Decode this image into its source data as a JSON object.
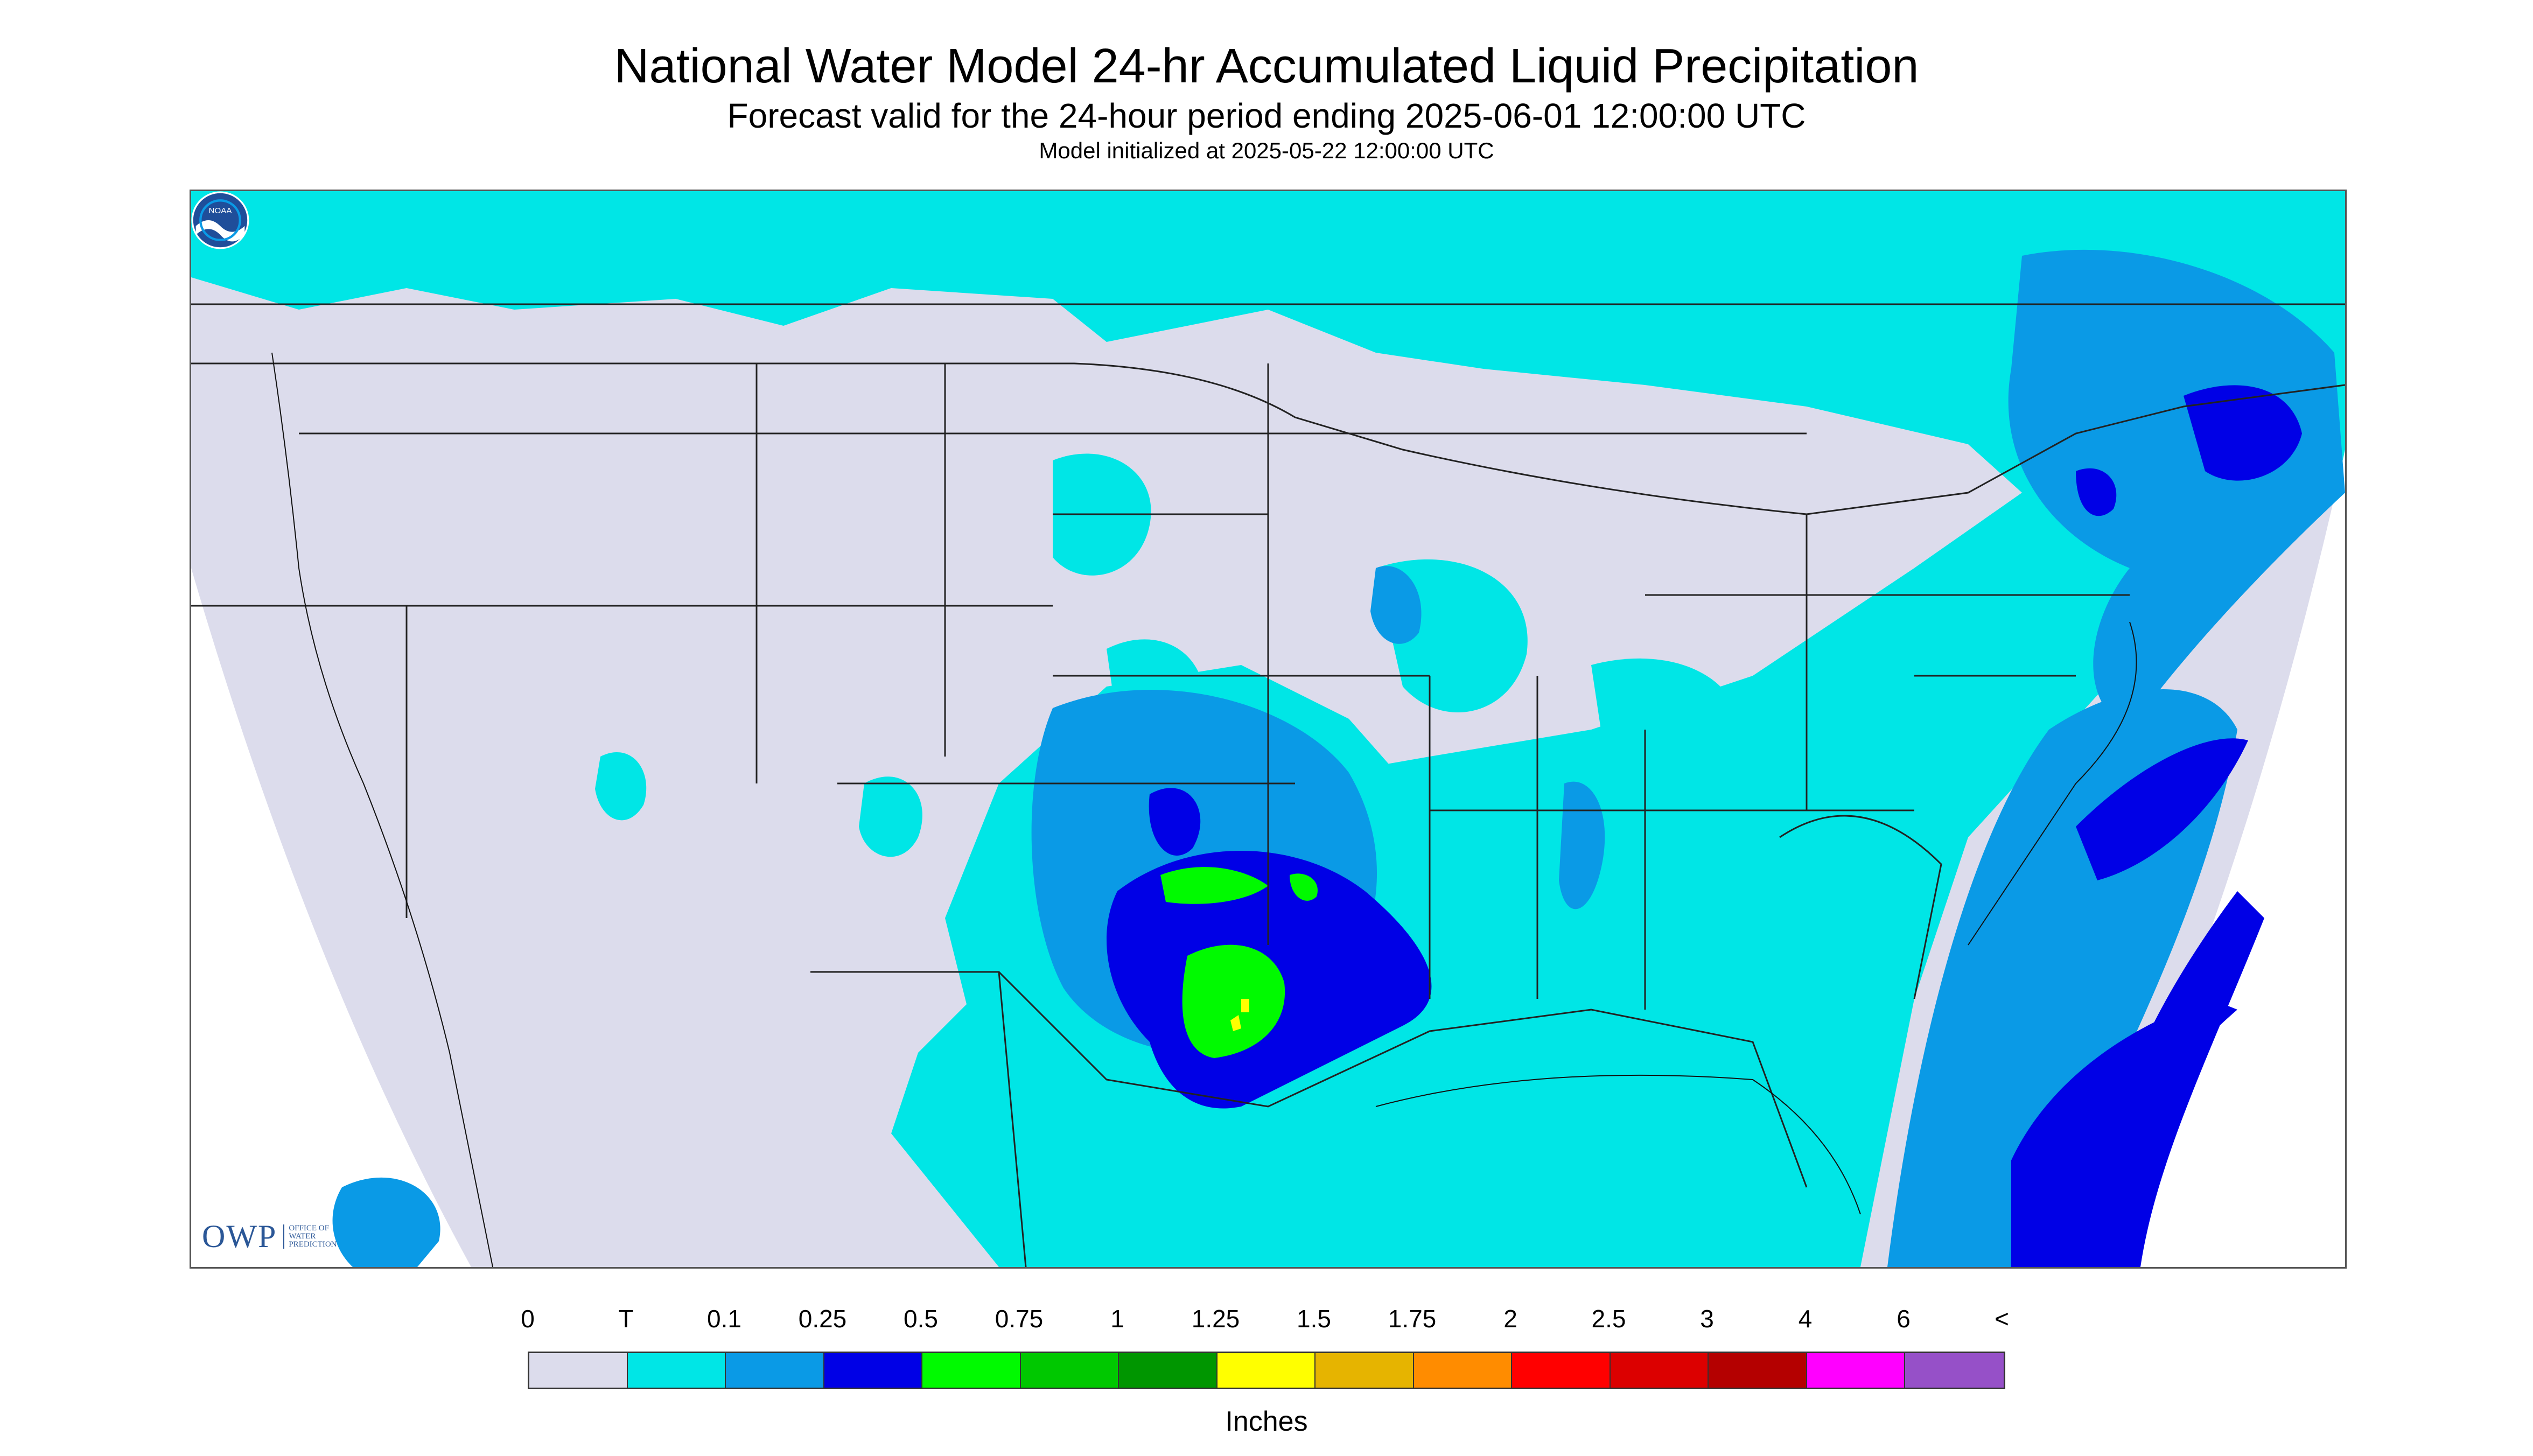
{
  "titles": {
    "main": "National Water Model 24-hr Accumulated Liquid Precipitation",
    "sub": "Forecast valid for the 24-hour period ending 2025-06-01 12:00:00 UTC",
    "init": "Model initialized at 2025-05-22 12:00:00 UTC"
  },
  "logos": {
    "owp_text": "OWP",
    "owp_sub": [
      "OFFICE OF",
      "WATER",
      "PREDICTION"
    ],
    "noaa_text": "NOAA"
  },
  "legend": {
    "units": "Inches",
    "labels": [
      "0",
      "T",
      "0.1",
      "0.25",
      "0.5",
      "0.75",
      "1",
      "1.25",
      "1.5",
      "1.75",
      "2",
      "2.5",
      "3",
      "4",
      "6",
      "<"
    ],
    "colors": [
      "#dcdcec",
      "#00e6e6",
      "#0a9ae6",
      "#0000e6",
      "#00fa00",
      "#00c800",
      "#009600",
      "#ffff00",
      "#e6b400",
      "#ff8c00",
      "#ff0000",
      "#dc0000",
      "#b40000",
      "#ff00ff",
      "#9650c8"
    ]
  },
  "map": {
    "background_color": "#dcdcec",
    "projection_edge_color": "#ffffff",
    "boundary_color": "#222222"
  }
}
